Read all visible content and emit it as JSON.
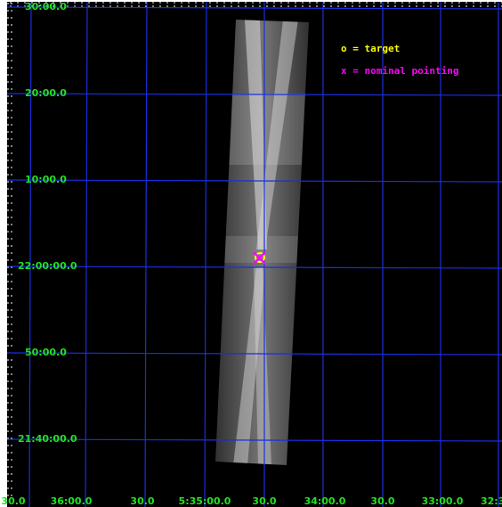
{
  "y_labels": [
    "30:00.0",
    "20:00.0",
    "10:00.0",
    "22:00:00.0",
    "50:00.0",
    "21:40:00.0"
  ],
  "x_labels": [
    "30.0",
    "36:00.0",
    "30.0",
    "5:35:00.0",
    "30.0",
    "34:00.0",
    "30.0",
    "33:00.0",
    "32:3"
  ],
  "legend": [
    "o = target",
    "x = nominal pointing"
  ]
}
